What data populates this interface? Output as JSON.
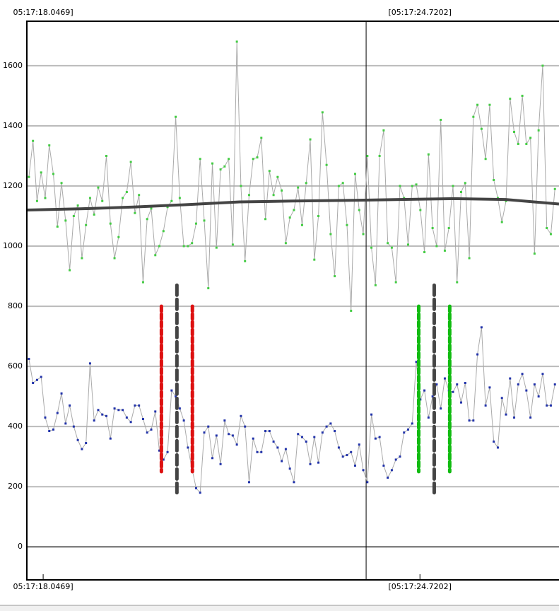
{
  "chart_data": {
    "type": "line",
    "xlim": [
      -0.5,
      130
    ],
    "ylim": [
      -110,
      1748
    ],
    "yticks": [
      0,
      200,
      400,
      600,
      800,
      1000,
      1200,
      1400,
      1600
    ],
    "grid": true,
    "xticks": [
      {
        "value": 3.5,
        "label": "05:17:18.0469]"
      },
      {
        "value": 95.9,
        "label": "[05:17:24.7202]"
      }
    ],
    "cursor_x": 82.7,
    "series": [
      {
        "name": null,
        "color": "#44cc44",
        "line_color": "#aaaaaa",
        "values": [
          1230,
          1350,
          1150,
          1245,
          1160,
          1335,
          1240,
          1065,
          1210,
          1085,
          920,
          1100,
          1135,
          960,
          1070,
          1160,
          1105,
          1195,
          1150,
          1300,
          1075,
          960,
          1030,
          1160,
          1180,
          1280,
          1110,
          1170,
          880,
          1090,
          1125,
          970,
          1000,
          1050,
          1130,
          1150,
          1430,
          1160,
          1000,
          1000,
          1010,
          1075,
          1290,
          1085,
          860,
          1275,
          995,
          1255,
          1265,
          1290,
          1005,
          1680,
          1200,
          950,
          1170,
          1290,
          1295,
          1360,
          1090,
          1250,
          1170,
          1230,
          1185,
          1010,
          1095,
          1120,
          1195,
          1070,
          1210,
          1355,
          955,
          1100,
          1445,
          1270,
          1040,
          900,
          1200,
          1210,
          1070,
          785,
          1240,
          1120,
          1040,
          1300,
          995,
          870,
          1300,
          1385,
          1010,
          995,
          880,
          1200,
          1160,
          1005,
          1200,
          1205,
          1120,
          980,
          1305,
          1060,
          1000,
          1420,
          985,
          1060,
          1200,
          880,
          1180,
          1210,
          960,
          1430,
          1470,
          1390,
          1290,
          1470,
          1220,
          1160,
          1080,
          1150,
          1490,
          1380,
          1340,
          1500,
          1340,
          1360,
          975,
          1385,
          1600,
          1060,
          1040,
          1190
        ]
      },
      {
        "name": null,
        "color": "#2233aa",
        "line_color": "#aaaaaa",
        "values": [
          625,
          545,
          555,
          565,
          430,
          385,
          390,
          445,
          510,
          410,
          470,
          400,
          355,
          325,
          345,
          610,
          420,
          455,
          440,
          435,
          360,
          460,
          455,
          455,
          430,
          415,
          470,
          470,
          425,
          380,
          390,
          450,
          320,
          290,
          315,
          520,
          500,
          460,
          420,
          330,
          260,
          195,
          180,
          380,
          400,
          295,
          370,
          275,
          420,
          375,
          370,
          340,
          435,
          400,
          215,
          360,
          315,
          315,
          385,
          385,
          350,
          330,
          285,
          325,
          260,
          215,
          375,
          365,
          350,
          275,
          365,
          280,
          380,
          400,
          410,
          385,
          330,
          300,
          305,
          315,
          270,
          340,
          255,
          215,
          440,
          360,
          365,
          270,
          230,
          255,
          290,
          300,
          380,
          390,
          410,
          615,
          490,
          520,
          430,
          500,
          540,
          460,
          560,
          520,
          515,
          540,
          480,
          545,
          420,
          420,
          640,
          730,
          470,
          530,
          350,
          330,
          495,
          440,
          560,
          430,
          540,
          575,
          520,
          430,
          540,
          500,
          575,
          470,
          470,
          540
        ]
      }
    ],
    "trend_line": {
      "color": "#444444",
      "values": [
        1120,
        1124,
        1130,
        1138,
        1147,
        1150,
        1152,
        1155,
        1158,
        1155,
        1140
      ]
    },
    "markers": [
      {
        "x": 32.5,
        "range": [
          250,
          800
        ],
        "color": "#dd1111"
      },
      {
        "x": 36.3,
        "range": [
          180,
          870
        ],
        "color": "#444444"
      },
      {
        "x": 40.1,
        "range": [
          250,
          800
        ],
        "color": "#dd1111"
      },
      {
        "x": 95.6,
        "range": [
          250,
          800
        ],
        "color": "#11bb11"
      },
      {
        "x": 99.4,
        "range": [
          180,
          870
        ],
        "color": "#444444"
      },
      {
        "x": 103.2,
        "range": [
          250,
          800
        ],
        "color": "#11bb11"
      }
    ]
  }
}
